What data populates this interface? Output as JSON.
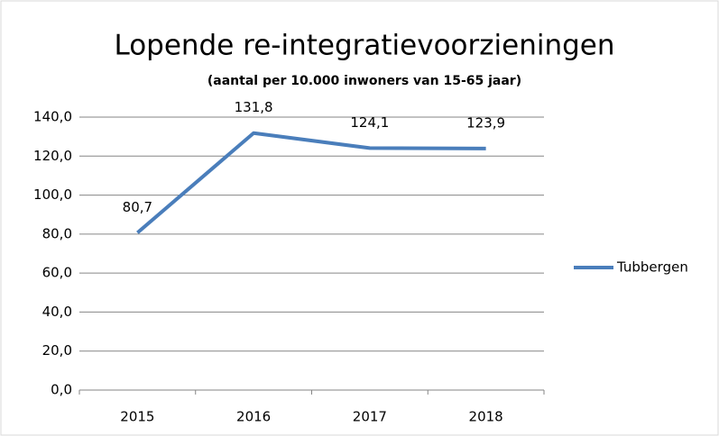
{
  "chart_data": {
    "type": "line",
    "title": "Lopende re-integratievoorzieningen",
    "subtitle": "(aantal per 10.000 inwoners van 15-65 jaar)",
    "categories": [
      "2015",
      "2016",
      "2017",
      "2018"
    ],
    "series": [
      {
        "name": "Tubbergen",
        "color": "#4a7ebb",
        "values": [
          80.7,
          131.8,
          124.1,
          123.9
        ],
        "value_labels": [
          "80,7",
          "131,8",
          "124,1",
          "123,9"
        ]
      }
    ],
    "ylim": [
      0,
      140
    ],
    "yticks": [
      {
        "value": 0,
        "label": "0,0"
      },
      {
        "value": 20,
        "label": "20,0"
      },
      {
        "value": 40,
        "label": "40,0"
      },
      {
        "value": 60,
        "label": "60,0"
      },
      {
        "value": 80,
        "label": "80,0"
      },
      {
        "value": 100,
        "label": "100,0"
      },
      {
        "value": 120,
        "label": "120,0"
      },
      {
        "value": 140,
        "label": "140,0"
      }
    ],
    "grid": true,
    "legend": "right"
  }
}
